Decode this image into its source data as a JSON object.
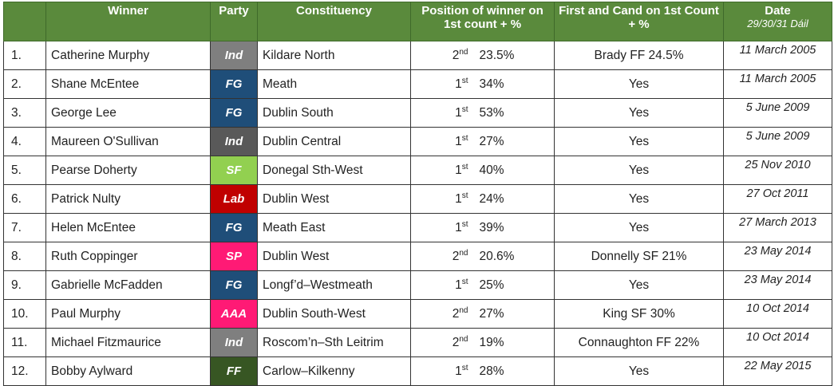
{
  "headers": {
    "num": "",
    "winner": "Winner",
    "party": "Party",
    "constituency": "Constituency",
    "position": "Position of winner on 1st count + %",
    "first": "First and Cand on 1st Count + %",
    "date": "Date",
    "date_sub": "29/30/31 Dáil"
  },
  "rows": [
    {
      "num": "1.",
      "winner": "Catherine Murphy",
      "party": "Ind",
      "party_color": "#7f7f7f",
      "constituency": "Kildare North",
      "pos": "2",
      "pos_sup": "nd",
      "pct": "23.5%",
      "first": "Brady FF 24.5%",
      "date": "11 March 2005"
    },
    {
      "num": "2.",
      "winner": "Shane McEntee",
      "party": "FG",
      "party_color": "#1f4e79",
      "constituency": "Meath",
      "pos": "1",
      "pos_sup": "st",
      "pct": "34%",
      "first": "Yes",
      "date": "11 March 2005"
    },
    {
      "num": "3.",
      "winner": "George Lee",
      "party": "FG",
      "party_color": "#1f4e79",
      "constituency": "Dublin South",
      "pos": "1",
      "pos_sup": "st",
      "pct": "53%",
      "first": "Yes",
      "date": "5 June 2009"
    },
    {
      "num": "4.",
      "winner": "Maureen O'Sullivan",
      "party": "Ind",
      "party_color": "#595959",
      "constituency": "Dublin Central",
      "pos": "1",
      "pos_sup": "st",
      "pct": "27%",
      "first": "Yes",
      "date": "5 June 2009"
    },
    {
      "num": "5.",
      "winner": "Pearse Doherty",
      "party": "SF",
      "party_color": "#92d050",
      "constituency": "Donegal Sth-West",
      "pos": "1",
      "pos_sup": "st",
      "pct": "40%",
      "first": "Yes",
      "date": "25 Nov 2010"
    },
    {
      "num": "6.",
      "winner": "Patrick Nulty",
      "party": "Lab",
      "party_color": "#c00000",
      "constituency": "Dublin West",
      "pos": "1",
      "pos_sup": "st",
      "pct": "24%",
      "first": "Yes",
      "date": "27 Oct 2011"
    },
    {
      "num": "7.",
      "winner": "Helen McEntee",
      "party": "FG",
      "party_color": "#1f4e79",
      "constituency": "Meath East",
      "pos": "1",
      "pos_sup": "st",
      "pct": "39%",
      "first": "Yes",
      "date": "27 March 2013"
    },
    {
      "num": "8.",
      "winner": "Ruth Coppinger",
      "party": "SP",
      "party_color": "#ff1a75",
      "constituency": "Dublin West",
      "pos": "2",
      "pos_sup": "nd",
      "pct": "20.6%",
      "first": "Donnelly SF 21%",
      "date": "23 May 2014"
    },
    {
      "num": "9.",
      "winner": "Gabrielle McFadden",
      "party": "FG",
      "party_color": "#1f4e79",
      "constituency": "Longf’d–Westmeath",
      "pos": "1",
      "pos_sup": "st",
      "pct": "25%",
      "first": "Yes",
      "date": "23 May 2014"
    },
    {
      "num": "10.",
      "winner": "Paul Murphy",
      "party": "AAA",
      "party_color": "#ff1a75",
      "constituency": "Dublin South-West",
      "pos": "2",
      "pos_sup": "nd",
      "pct": "27%",
      "first": "King SF 30%",
      "date": "10 Oct 2014"
    },
    {
      "num": "11.",
      "winner": "Michael Fitzmaurice",
      "party": "Ind",
      "party_color": "#7f7f7f",
      "constituency": "Roscom’n–Sth Leitrim",
      "pos": "2",
      "pos_sup": "nd",
      "pct": "19%",
      "first": "Connaughton FF 22%",
      "date": "10 Oct 2014"
    },
    {
      "num": "12.",
      "winner": "Bobby Aylward",
      "party": "FF",
      "party_color": "#375623",
      "constituency": "Carlow–Kilkenny",
      "pos": "1",
      "pos_sup": "st",
      "pct": "28%",
      "first": "Yes",
      "date": "22 May 2015"
    }
  ]
}
